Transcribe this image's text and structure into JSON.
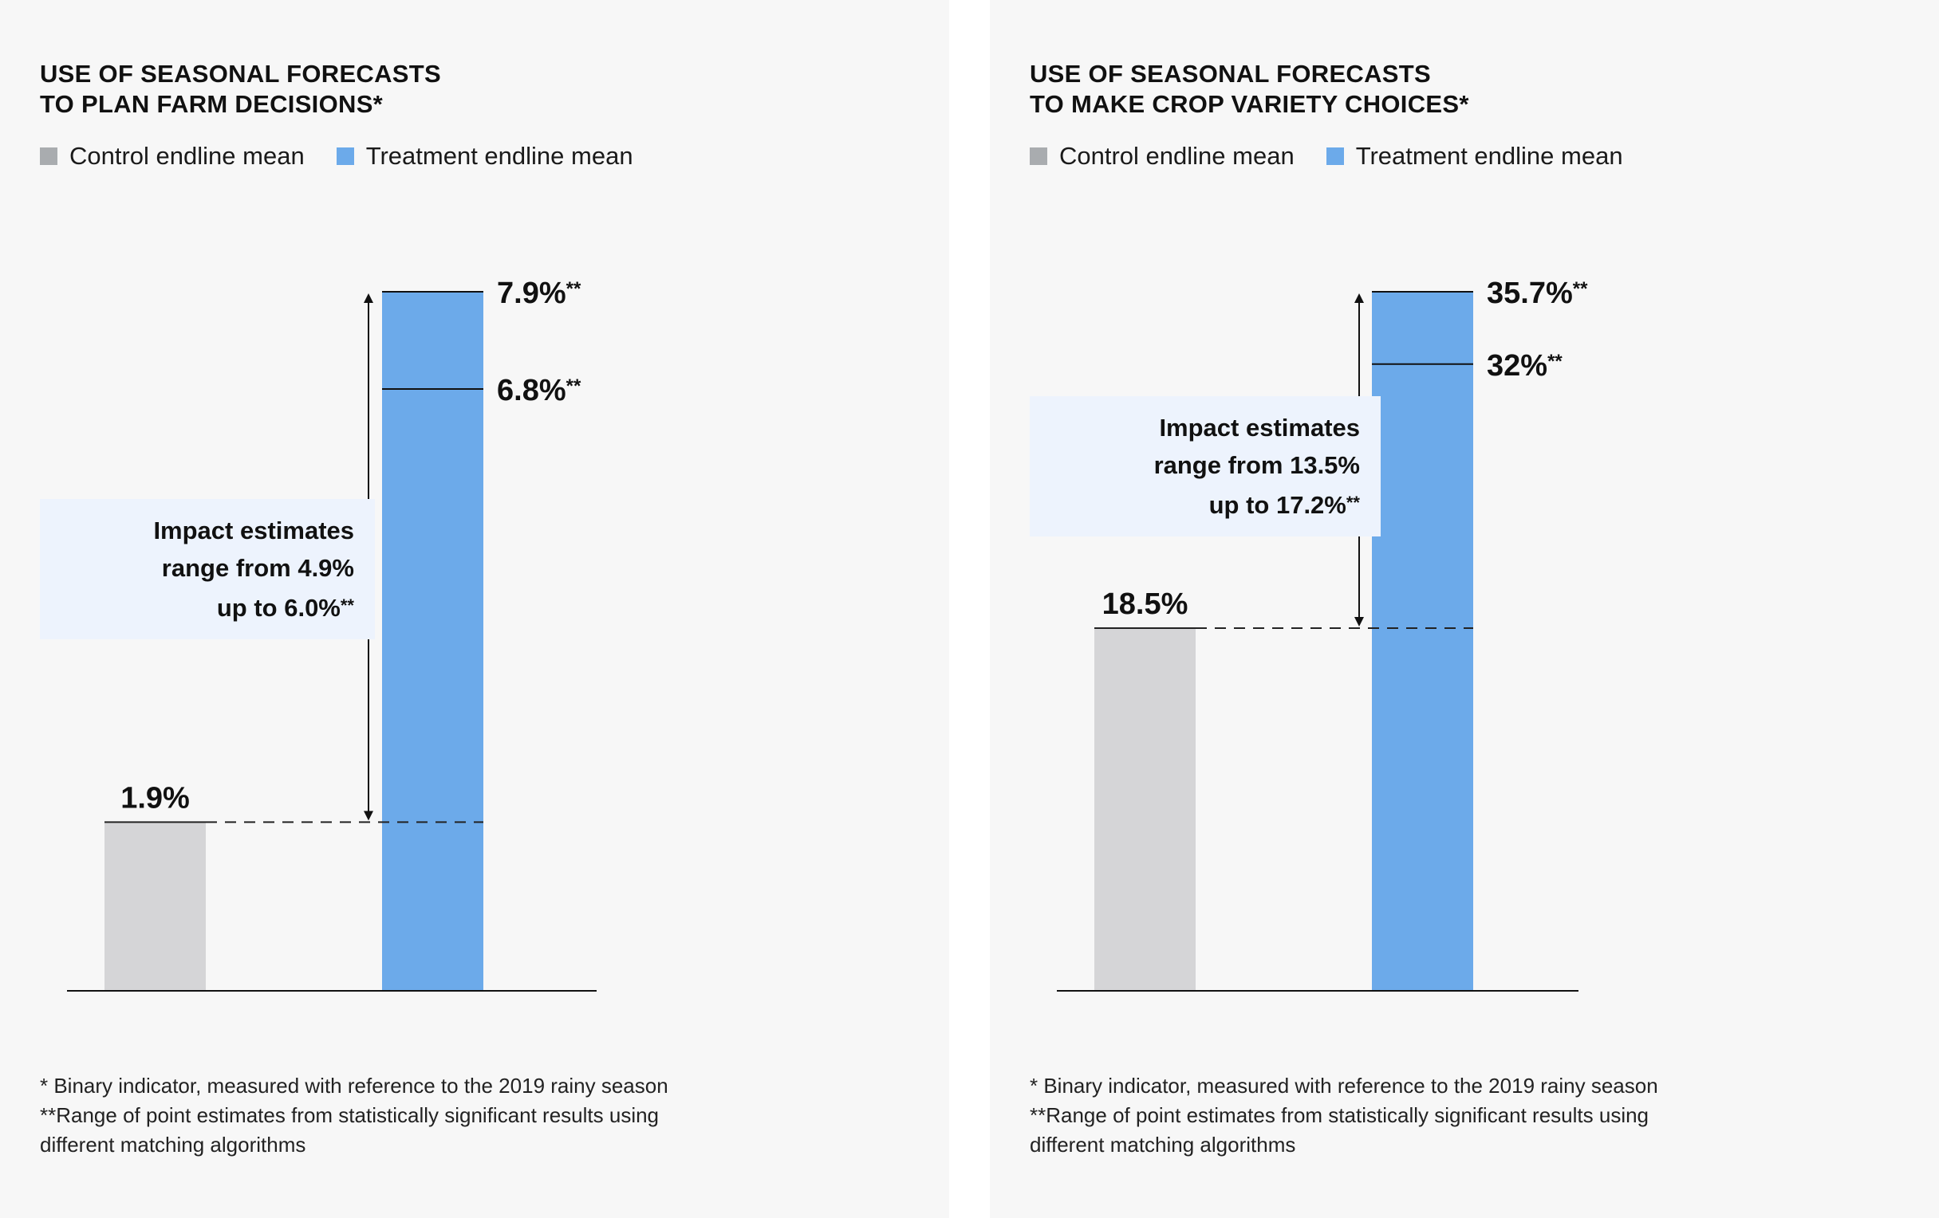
{
  "legend": {
    "control_label": "Control endline mean",
    "treatment_label": "Treatment endline mean"
  },
  "colors": {
    "control": "#d5d5d7",
    "control_swatch": "#a9acaf",
    "treatment": "#6caaea",
    "note_bg": "#edf3fd",
    "panel_bg": "#f7f7f7"
  },
  "footnotes": {
    "line1": "* Binary indicator, measured with reference to the 2019 rainy season",
    "line2": "**Range of point estimates from statistically significant results using",
    "line3": "different matching algorithms"
  },
  "panels": [
    {
      "title_line1": "USE OF SEASONAL FORECASTS",
      "title_line2": "TO PLAN FARM DECISIONS*",
      "note_line1": "Impact estimates",
      "note_line2": "range from 4.9%",
      "note_line3": "up to 6.0%",
      "note_stars": "**"
    },
    {
      "title_line1": "USE OF SEASONAL FORECASTS",
      "title_line2": "TO MAKE CROP VARIETY CHOICES*",
      "note_line1": "Impact estimates",
      "note_line2": "range from 13.5%",
      "note_line3": "up to 17.2%",
      "note_stars": "**"
    }
  ],
  "chart_data": [
    {
      "type": "bar",
      "title": "USE OF SEASONAL FORECASTS TO PLAN FARM DECISIONS*",
      "categories": [
        "Control endline mean",
        "Treatment endline mean"
      ],
      "control": {
        "value": 1.9,
        "label": "1.9%"
      },
      "treatment_estimates": [
        {
          "value": 7.9,
          "label": "7.9%",
          "stars": "**"
        },
        {
          "value": 6.8,
          "label": "6.8%",
          "stars": "**"
        }
      ],
      "impact_range": [
        4.9,
        6.0
      ],
      "units": "%"
    },
    {
      "type": "bar",
      "title": "USE OF SEASONAL FORECASTS TO MAKE CROP VARIETY CHOICES*",
      "categories": [
        "Control endline mean",
        "Treatment endline mean"
      ],
      "control": {
        "value": 18.5,
        "label": "18.5%"
      },
      "treatment_estimates": [
        {
          "value": 35.7,
          "label": "35.7%",
          "stars": "**"
        },
        {
          "value": 32,
          "label": "32%",
          "stars": "**"
        }
      ],
      "impact_range": [
        13.5,
        17.2
      ],
      "units": "%"
    }
  ]
}
